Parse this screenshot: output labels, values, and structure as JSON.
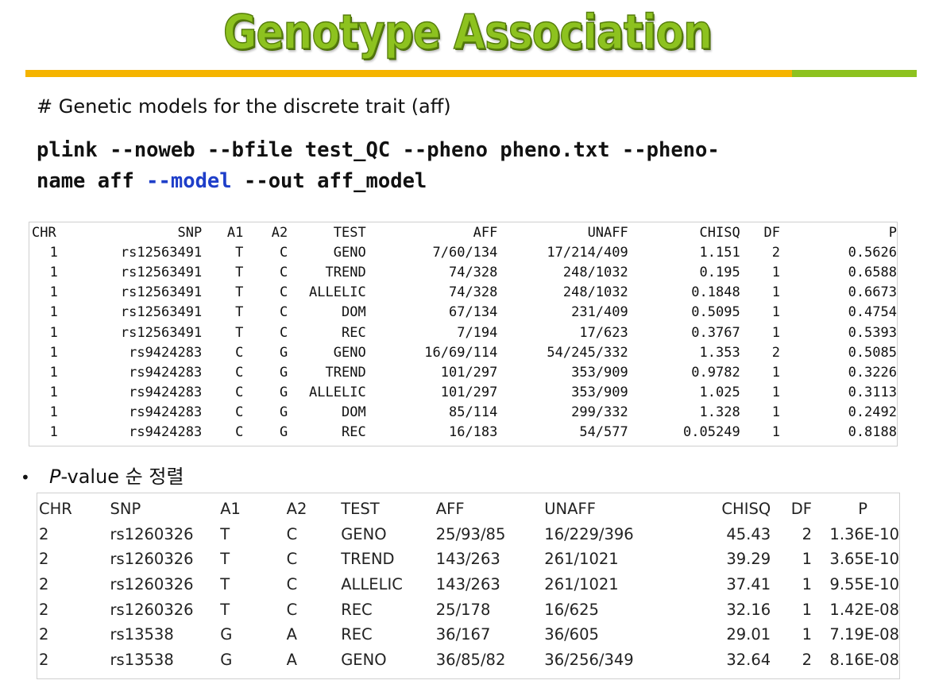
{
  "title": "Genotype Association",
  "comment": "# Genetic models for the discrete trait (aff)",
  "command": {
    "line1": "plink --noweb --bfile test_QC --pheno pheno.txt --pheno-",
    "line2_a": "name aff ",
    "line2_kw": "--model",
    "line2_b": " --out aff_model"
  },
  "raw_table": {
    "headers": [
      "CHR",
      "SNP",
      "A1",
      "A2",
      "TEST",
      "AFF",
      "UNAFF",
      "CHISQ",
      "DF",
      "P"
    ],
    "rows": [
      [
        "1",
        "rs12563491",
        "T",
        "C",
        "GENO",
        "7/60/134",
        "17/214/409",
        "1.151",
        "2",
        "0.5626"
      ],
      [
        "1",
        "rs12563491",
        "T",
        "C",
        "TREND",
        "74/328",
        "248/1032",
        "0.195",
        "1",
        "0.6588"
      ],
      [
        "1",
        "rs12563491",
        "T",
        "C",
        "ALLELIC",
        "74/328",
        "248/1032",
        "0.1848",
        "1",
        "0.6673"
      ],
      [
        "1",
        "rs12563491",
        "T",
        "C",
        "DOM",
        "67/134",
        "231/409",
        "0.5095",
        "1",
        "0.4754"
      ],
      [
        "1",
        "rs12563491",
        "T",
        "C",
        "REC",
        "7/194",
        "17/623",
        "0.3767",
        "1",
        "0.5393"
      ],
      [
        "1",
        "rs9424283",
        "C",
        "G",
        "GENO",
        "16/69/114",
        "54/245/332",
        "1.353",
        "2",
        "0.5085"
      ],
      [
        "1",
        "rs9424283",
        "C",
        "G",
        "TREND",
        "101/297",
        "353/909",
        "0.9782",
        "1",
        "0.3226"
      ],
      [
        "1",
        "rs9424283",
        "C",
        "G",
        "ALLELIC",
        "101/297",
        "353/909",
        "1.025",
        "1",
        "0.3113"
      ],
      [
        "1",
        "rs9424283",
        "C",
        "G",
        "DOM",
        "85/114",
        "299/332",
        "1.328",
        "1",
        "0.2492"
      ],
      [
        "1",
        "rs9424283",
        "C",
        "G",
        "REC",
        "16/183",
        "54/577",
        "0.05249",
        "1",
        "0.8188"
      ]
    ]
  },
  "bullet": {
    "glyph": "•",
    "italic": "P",
    "rest": "-value 순 정렬"
  },
  "sorted_table": {
    "headers": [
      "CHR",
      "SNP",
      "A1",
      "A2",
      "TEST",
      "AFF",
      "UNAFF",
      "CHISQ",
      "DF",
      "P"
    ],
    "rows": [
      [
        "2",
        "rs1260326",
        "T",
        "C",
        "GENO",
        "25/93/85",
        "16/229/396",
        "45.43",
        "2",
        "1.36E-10"
      ],
      [
        "2",
        "rs1260326",
        "T",
        "C",
        "TREND",
        "143/263",
        "261/1021",
        "39.29",
        "1",
        "3.65E-10"
      ],
      [
        "2",
        "rs1260326",
        "T",
        "C",
        "ALLELIC",
        "143/263",
        "261/1021",
        "37.41",
        "1",
        "9.55E-10"
      ],
      [
        "2",
        "rs1260326",
        "T",
        "C",
        "REC",
        "25/178",
        "16/625",
        "32.16",
        "1",
        "1.42E-08"
      ],
      [
        "2",
        "rs13538",
        "G",
        "A",
        "REC",
        "36/167",
        "36/605",
        "29.01",
        "1",
        "7.19E-08"
      ],
      [
        "2",
        "rs13538",
        "G",
        "A",
        "GENO",
        "36/85/82",
        "36/256/349",
        "32.64",
        "2",
        "8.16E-08"
      ]
    ]
  }
}
